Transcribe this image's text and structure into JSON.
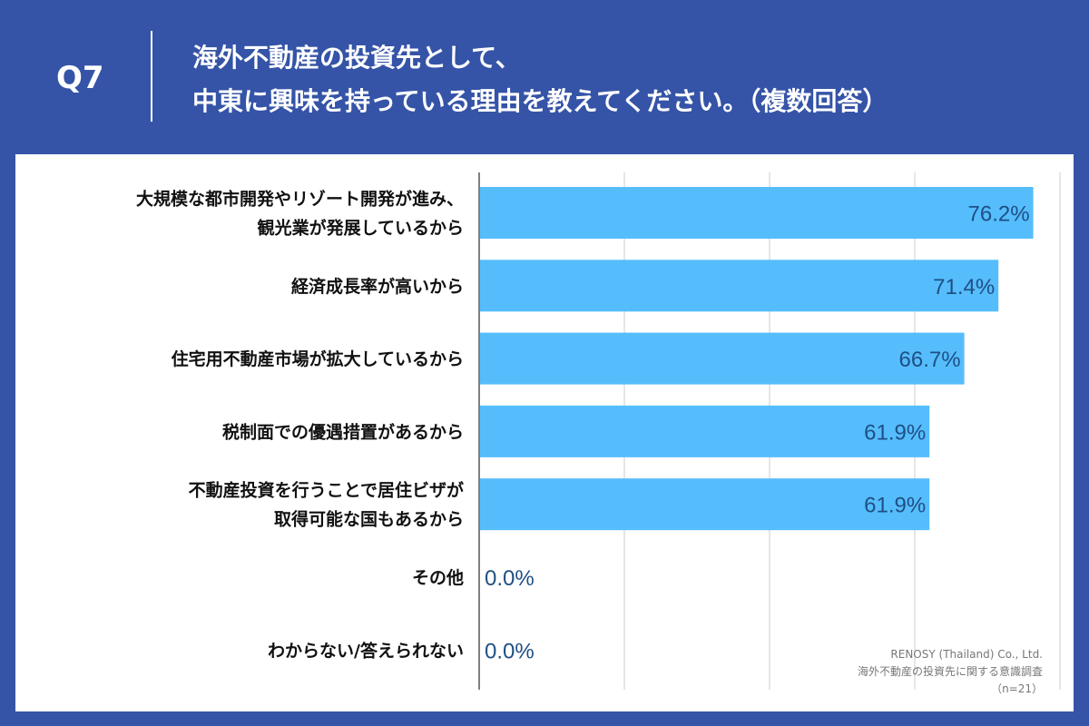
{
  "header": {
    "question_label": "Q7",
    "title_line1": "海外不動産の投資先として、",
    "title_line2": "中東に興味を持っている理由を教えてください。（複数回答）"
  },
  "colors": {
    "background": "#3554a7",
    "bar": "#55bdfc",
    "value_text": "#1f4f84",
    "grid": "#cccccc"
  },
  "credit": {
    "company": "RENOSY (Thailand) Co., Ltd.",
    "survey": "海外不動産の投資先に関する意識調査",
    "sample": "（n=21）"
  },
  "chart_data": {
    "type": "bar",
    "orientation": "horizontal",
    "categories": [
      [
        "大規模な都市開発やリゾート開発が進み、",
        "観光業が発展しているから"
      ],
      [
        "経済成長率が高いから"
      ],
      [
        "住宅用不動産市場が拡大しているから"
      ],
      [
        "税制面での優遇措置があるから"
      ],
      [
        "不動産投資を行うことで居住ビザが",
        "取得可能な国もあるから"
      ],
      [
        "その他"
      ],
      [
        "わからない/答えられない"
      ]
    ],
    "values": [
      76.2,
      71.4,
      66.7,
      61.9,
      61.9,
      0.0,
      0.0
    ],
    "value_labels": [
      "76.2%",
      "71.4%",
      "66.7%",
      "61.9%",
      "61.9%",
      "0.0%",
      "0.0%"
    ],
    "xlim": [
      0,
      80
    ],
    "grid": true
  }
}
